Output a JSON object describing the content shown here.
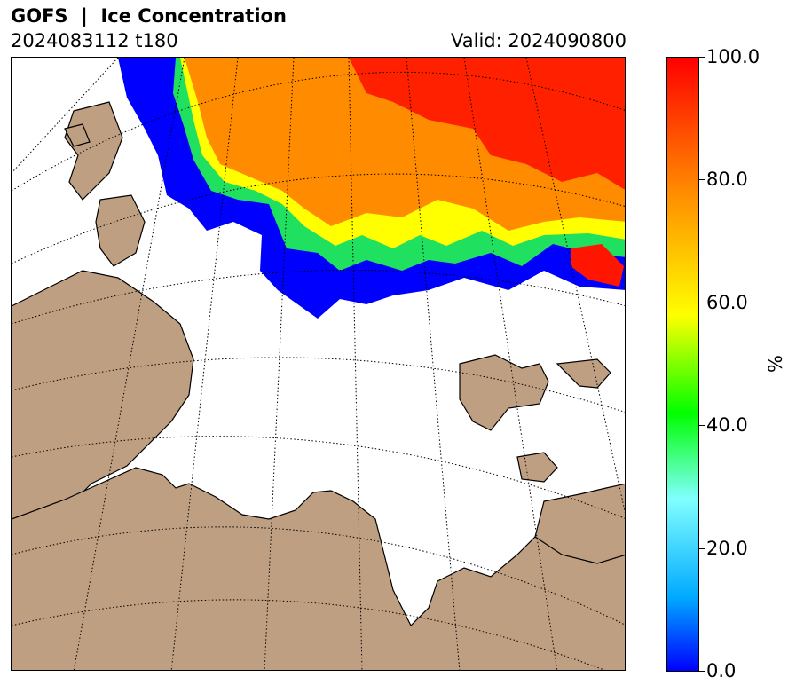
{
  "header": {
    "title": "GOFS  |  Ice Concentration",
    "run": "2024083112 t180",
    "valid": "Valid: 2024090800"
  },
  "colorbar": {
    "label": "%",
    "ticks": [
      "100.0",
      "80.0",
      "60.0",
      "40.0",
      "20.0",
      "0.0"
    ],
    "tick_values": [
      100,
      80,
      60,
      40,
      20,
      0
    ],
    "range": [
      0,
      100
    ],
    "colors": {
      "0": "#0000ff",
      "10": "#00aaff",
      "20": "#80ffff",
      "40": "#00ff00",
      "60": "#ffff00",
      "80": "#ff8c00",
      "100": "#ff0000"
    }
  },
  "map": {
    "land_color": "#bf9f82",
    "ocean_color": "#ffffff",
    "graticule_style": "dotted",
    "projection": "polar"
  }
}
